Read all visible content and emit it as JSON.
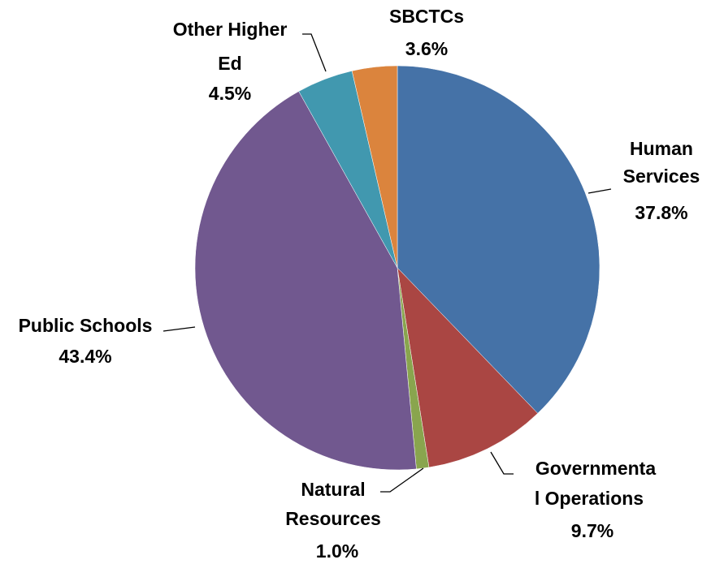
{
  "chart_data": {
    "type": "pie",
    "categories": [
      "Human Services",
      "Governmental Operations",
      "Natural Resources",
      "Public Schools",
      "Other Higher Ed",
      "SBCTCs"
    ],
    "values": [
      37.8,
      9.7,
      1.0,
      43.4,
      4.5,
      3.6
    ],
    "value_labels": [
      "37.8%",
      "9.7%",
      "1.0%",
      "43.4%",
      "4.5%",
      "3.6%"
    ],
    "colors": [
      "#4572a7",
      "#aa4643",
      "#89a54e",
      "#71588f",
      "#4198af",
      "#db843d"
    ]
  }
}
